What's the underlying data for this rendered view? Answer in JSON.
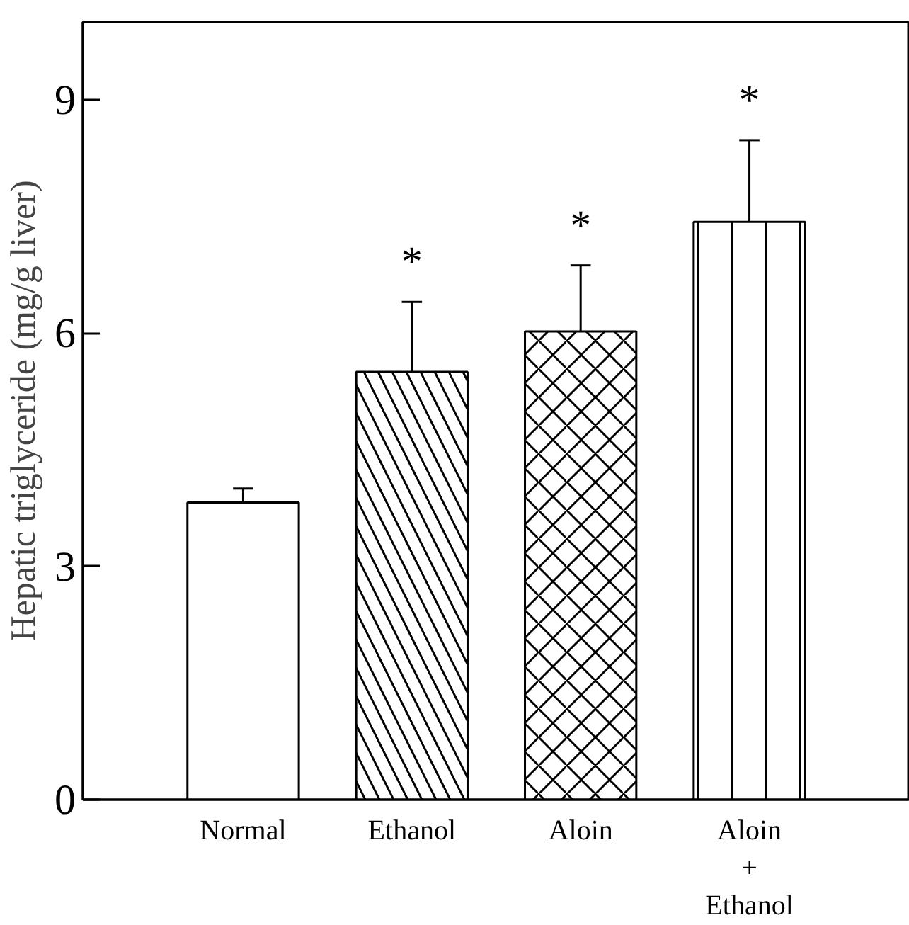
{
  "chart_data": {
    "type": "bar",
    "ylabel": "Hepatic triglyceride (mg/g liver)",
    "categories": [
      "Normal",
      "Ethanol",
      "Aloin",
      "Aloin\n+\nEthanol"
    ],
    "values": [
      3.82,
      5.5,
      6.02,
      7.43
    ],
    "errors": [
      0.18,
      0.9,
      0.85,
      1.05
    ],
    "colors": [
      "#ffffff",
      "#ffffff",
      "#ffffff",
      "#ffffff"
    ],
    "ylim": [
      0,
      10
    ],
    "yticks": [
      0,
      3,
      6,
      9
    ],
    "grid": false,
    "annotations": [
      "*",
      "*",
      "*"
    ]
  }
}
